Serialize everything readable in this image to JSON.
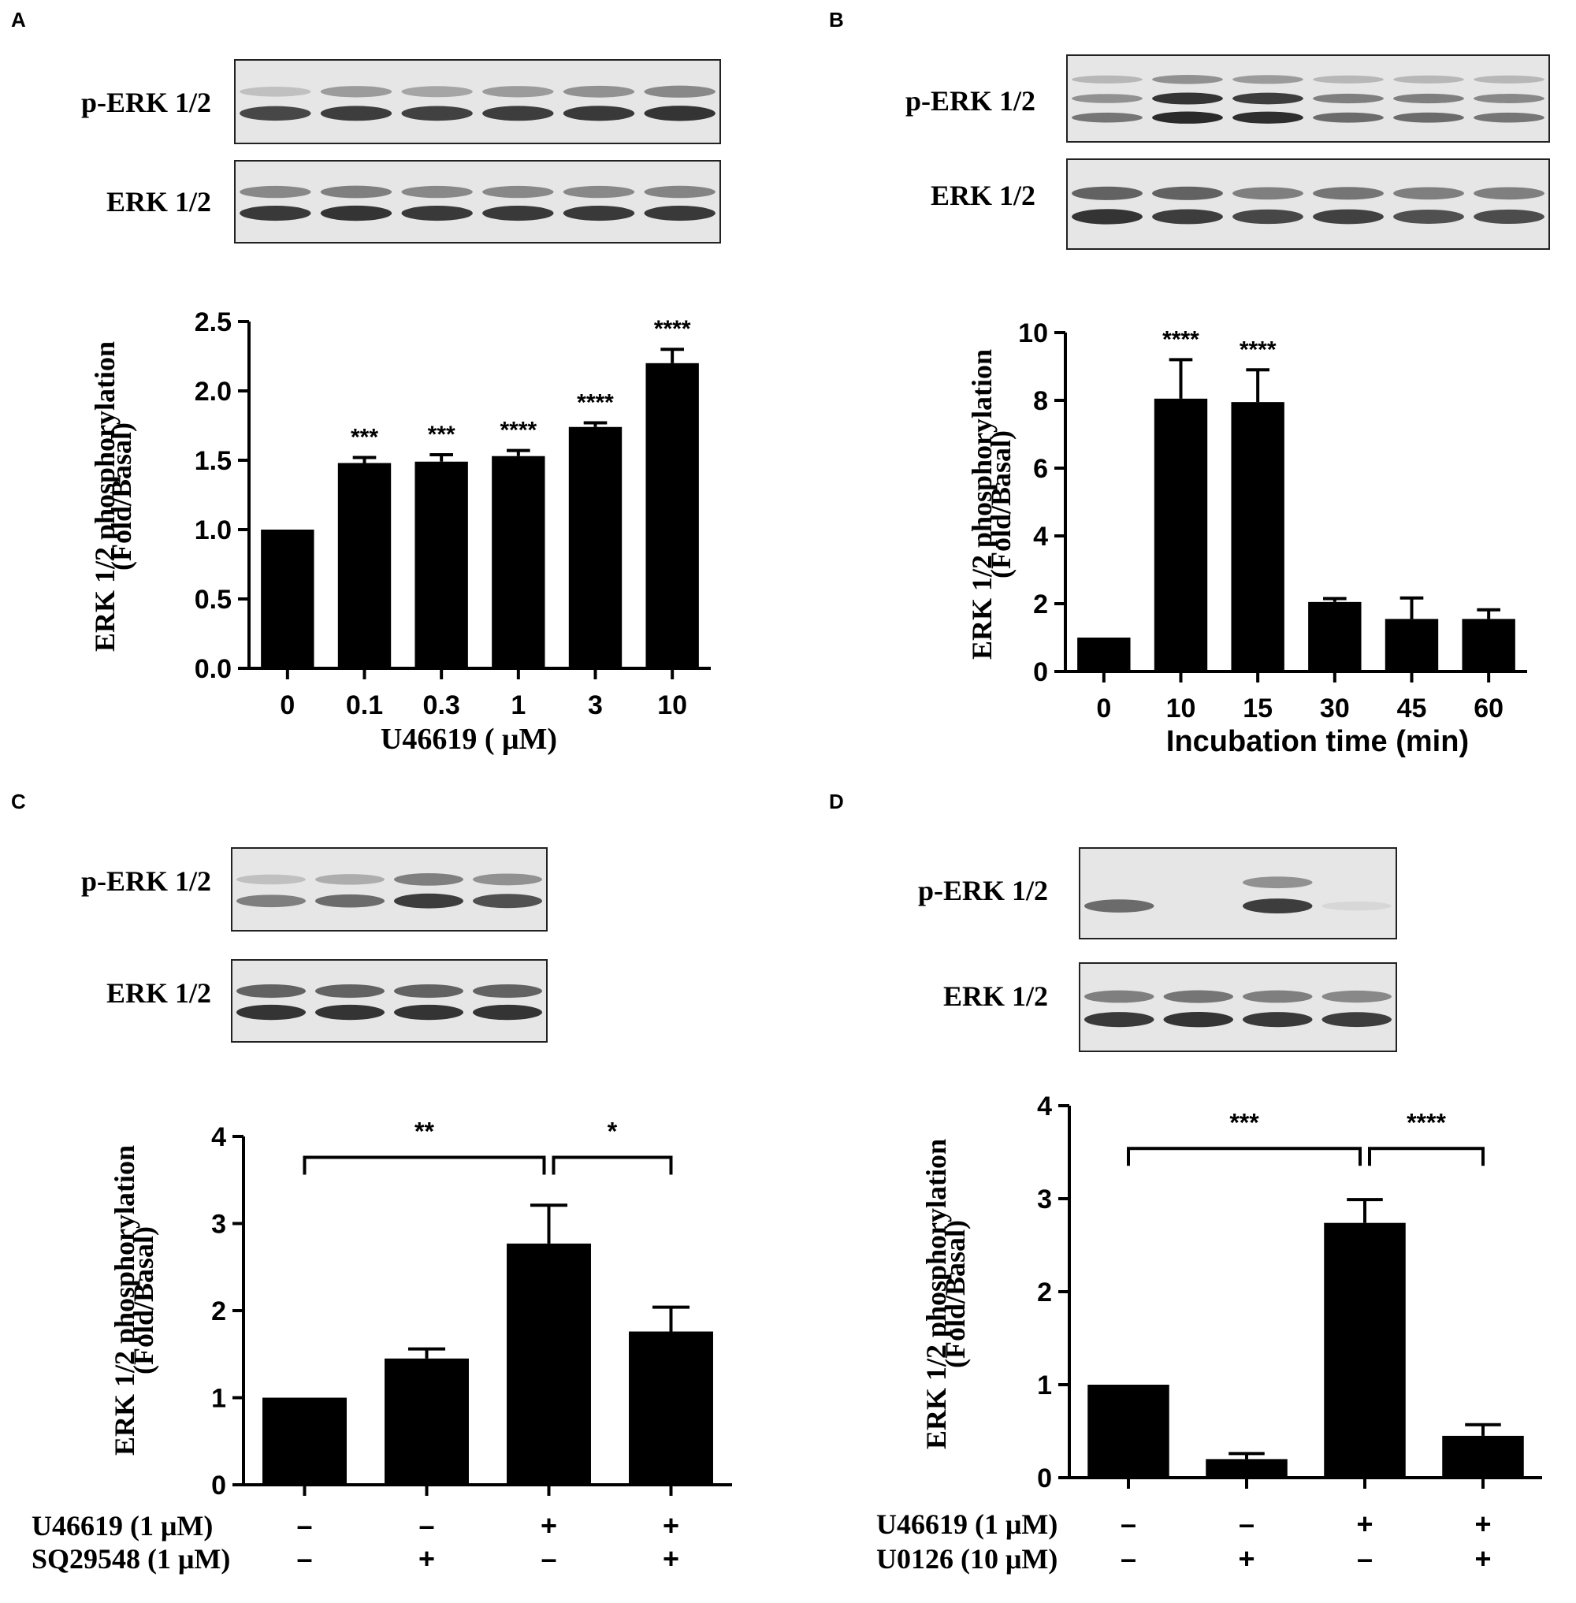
{
  "figure": {
    "colors": {
      "bar": "#000000",
      "blot_bg": "#e6e6e6",
      "band": "#2a2a2a"
    },
    "blot_labels": {
      "p_erk": "p-ERK 1/2",
      "erk": "ERK 1/2"
    },
    "panels": [
      {
        "letter": "A",
        "blots": {
          "p_erk_bands": [
            [
              {
                "intensity": 0.2
              },
              {
                "intensity": 0.4
              },
              {
                "intensity": 0.35
              },
              {
                "intensity": 0.4
              },
              {
                "intensity": 0.45
              },
              {
                "intensity": 0.5
              }
            ],
            [
              {
                "intensity": 0.85
              },
              {
                "intensity": 0.9
              },
              {
                "intensity": 0.88
              },
              {
                "intensity": 0.9
              },
              {
                "intensity": 0.92
              },
              {
                "intensity": 0.95
              }
            ]
          ],
          "erk_bands": [
            [
              {
                "intensity": 0.5
              },
              {
                "intensity": 0.55
              },
              {
                "intensity": 0.5
              },
              {
                "intensity": 0.5
              },
              {
                "intensity": 0.5
              },
              {
                "intensity": 0.52
              }
            ],
            [
              {
                "intensity": 0.92
              },
              {
                "intensity": 0.95
              },
              {
                "intensity": 0.92
              },
              {
                "intensity": 0.92
              },
              {
                "intensity": 0.92
              },
              {
                "intensity": 0.92
              }
            ]
          ]
        },
        "chart_data": {
          "type": "bar",
          "categories": [
            "0",
            "0.1",
            "0.3",
            "1",
            "3",
            "10"
          ],
          "values": [
            1.0,
            1.48,
            1.49,
            1.53,
            1.74,
            2.2
          ],
          "errors": [
            0,
            0.04,
            0.05,
            0.04,
            0.03,
            0.1
          ],
          "significance": [
            "",
            "***",
            "***",
            "****",
            "****",
            "****"
          ],
          "ylabel": [
            "ERK 1/2 phosphorylation",
            "(Fold/Basal)"
          ],
          "xlabel": "U46619 ( μM)",
          "ylim": [
            0,
            2.5
          ],
          "yticks": [
            "0.0",
            "0.5",
            "1.0",
            "1.5",
            "2.0",
            "2.5"
          ]
        }
      },
      {
        "letter": "B",
        "blots": {
          "p_erk_bands": [
            [
              {
                "intensity": 0.25
              },
              {
                "intensity": 0.45
              },
              {
                "intensity": 0.4
              },
              {
                "intensity": 0.25
              },
              {
                "intensity": 0.25
              },
              {
                "intensity": 0.25
              }
            ],
            [
              {
                "intensity": 0.45
              },
              {
                "intensity": 0.95
              },
              {
                "intensity": 0.9
              },
              {
                "intensity": 0.55
              },
              {
                "intensity": 0.55
              },
              {
                "intensity": 0.5
              }
            ],
            [
              {
                "intensity": 0.6
              },
              {
                "intensity": 1.0
              },
              {
                "intensity": 0.98
              },
              {
                "intensity": 0.65
              },
              {
                "intensity": 0.65
              },
              {
                "intensity": 0.6
              }
            ]
          ],
          "erk_bands": [
            [
              {
                "intensity": 0.7
              },
              {
                "intensity": 0.7
              },
              {
                "intensity": 0.55
              },
              {
                "intensity": 0.6
              },
              {
                "intensity": 0.55
              },
              {
                "intensity": 0.55
              }
            ],
            [
              {
                "intensity": 0.95
              },
              {
                "intensity": 0.9
              },
              {
                "intensity": 0.85
              },
              {
                "intensity": 0.88
              },
              {
                "intensity": 0.8
              },
              {
                "intensity": 0.82
              }
            ]
          ]
        },
        "chart_data": {
          "type": "bar",
          "categories": [
            "0",
            "10",
            "15",
            "30",
            "45",
            "60"
          ],
          "values": [
            1.0,
            8.05,
            7.95,
            2.05,
            1.55,
            1.55
          ],
          "errors": [
            0,
            1.15,
            0.95,
            0.1,
            0.62,
            0.27
          ],
          "significance": [
            "",
            "****",
            "****",
            "",
            "",
            ""
          ],
          "ylabel": [
            "ERK 1/2 phosphorylation",
            "(Fold/Basal)"
          ],
          "xlabel": "Incubation time (min)",
          "ylim": [
            0,
            10
          ],
          "yticks": [
            "0",
            "2",
            "4",
            "6",
            "8",
            "10"
          ]
        }
      },
      {
        "letter": "C",
        "blots": {
          "p_erk_bands": [
            [
              {
                "intensity": 0.2
              },
              {
                "intensity": 0.3
              },
              {
                "intensity": 0.55
              },
              {
                "intensity": 0.45
              }
            ],
            [
              {
                "intensity": 0.55
              },
              {
                "intensity": 0.65
              },
              {
                "intensity": 0.9
              },
              {
                "intensity": 0.8
              }
            ]
          ],
          "erk_bands": [
            [
              {
                "intensity": 0.7
              },
              {
                "intensity": 0.7
              },
              {
                "intensity": 0.7
              },
              {
                "intensity": 0.7
              }
            ],
            [
              {
                "intensity": 0.95
              },
              {
                "intensity": 0.95
              },
              {
                "intensity": 0.95
              },
              {
                "intensity": 0.95
              }
            ]
          ]
        },
        "chart_data": {
          "type": "bar",
          "categories": [
            "1",
            "2",
            "3",
            "4"
          ],
          "values": [
            1.0,
            1.45,
            2.77,
            1.76
          ],
          "errors": [
            0,
            0.11,
            0.44,
            0.28
          ],
          "ylabel": [
            "ERK 1/2 phosphorylation",
            "(Fold/Basal)"
          ],
          "ylim": [
            0,
            4
          ],
          "yticks": [
            "0",
            "1",
            "2",
            "3",
            "4"
          ],
          "brackets": [
            {
              "from": 0,
              "to": 2,
              "label": "**"
            },
            {
              "from": 2,
              "to": 3,
              "label": "*"
            }
          ],
          "treatments": [
            {
              "label": "U46619 (1 μM)",
              "signs": [
                "–",
                "–",
                "+",
                "+"
              ]
            },
            {
              "label": "SQ29548 (1 μM)",
              "signs": [
                "–",
                "+",
                "–",
                "+"
              ]
            }
          ]
        }
      },
      {
        "letter": "D",
        "blots": {
          "p_erk_bands": [
            [
              {
                "intensity": 0.0
              },
              {
                "intensity": 0.0
              },
              {
                "intensity": 0.45
              },
              {
                "intensity": 0.0
              }
            ],
            [
              {
                "intensity": 0.65
              },
              {
                "intensity": 0.0
              },
              {
                "intensity": 0.9
              },
              {
                "intensity": 0.08
              }
            ]
          ],
          "erk_bands": [
            [
              {
                "intensity": 0.55
              },
              {
                "intensity": 0.6
              },
              {
                "intensity": 0.55
              },
              {
                "intensity": 0.5
              }
            ],
            [
              {
                "intensity": 0.92
              },
              {
                "intensity": 0.95
              },
              {
                "intensity": 0.92
              },
              {
                "intensity": 0.9
              }
            ]
          ]
        },
        "chart_data": {
          "type": "bar",
          "categories": [
            "1",
            "2",
            "3",
            "4"
          ],
          "values": [
            1.0,
            0.2,
            2.74,
            0.45
          ],
          "errors": [
            0,
            0.06,
            0.25,
            0.12
          ],
          "ylabel": [
            "ERK 1/2 phosphorylation",
            "(Fold/Basal)"
          ],
          "ylim": [
            0,
            4
          ],
          "yticks": [
            "0",
            "1",
            "2",
            "3",
            "4"
          ],
          "brackets": [
            {
              "from": 0,
              "to": 2,
              "label": "***"
            },
            {
              "from": 2,
              "to": 3,
              "label": "****"
            }
          ],
          "treatments": [
            {
              "label": "U46619 (1 μM)",
              "signs": [
                "–",
                "–",
                "+",
                "+"
              ]
            },
            {
              "label": "U0126 (10 μM)",
              "signs": [
                "–",
                "+",
                "–",
                "+"
              ]
            }
          ]
        }
      }
    ]
  }
}
